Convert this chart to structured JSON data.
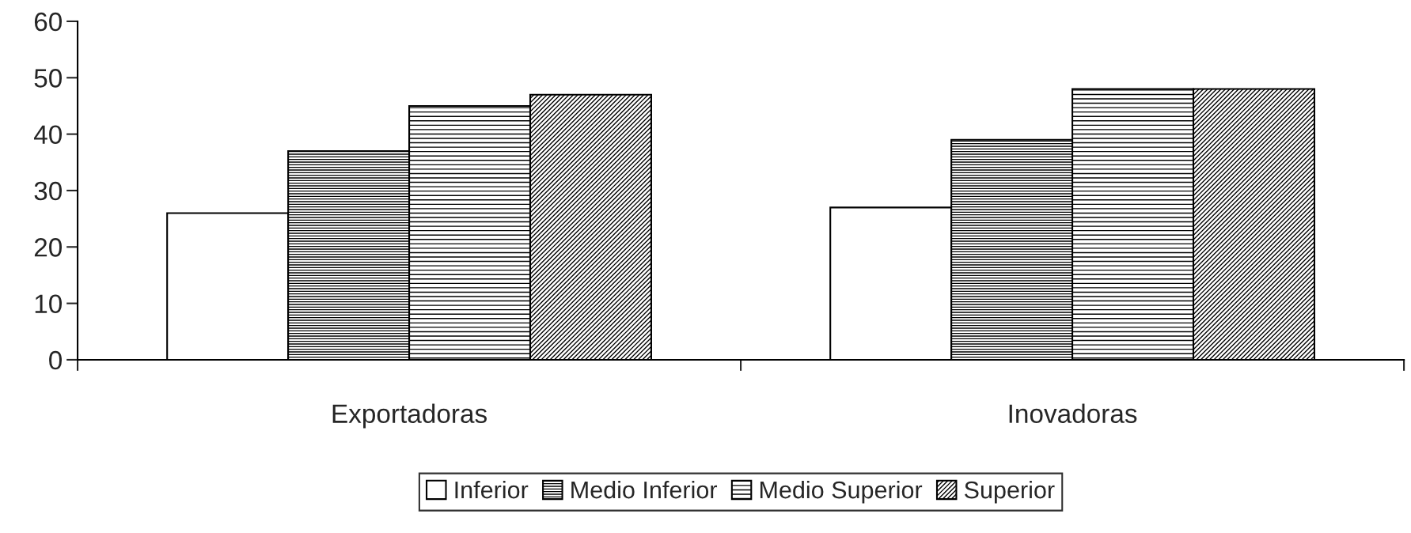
{
  "chart_data": {
    "type": "bar",
    "categories": [
      "Exportadoras",
      "Inovadoras"
    ],
    "series": [
      {
        "name": "Inferior",
        "color": "#ffffff",
        "values": [
          26,
          27
        ]
      },
      {
        "name": "Medio Inferior",
        "color": "#000000",
        "values": [
          37,
          39
        ]
      },
      {
        "name": "Medio Superior",
        "color": "#000000",
        "values": [
          45,
          48
        ]
      },
      {
        "name": "Superior",
        "color": "#000000",
        "values": [
          47,
          48
        ]
      }
    ],
    "ylim": [
      0,
      60
    ],
    "yticks": [
      0,
      10,
      20,
      30,
      40,
      50,
      60
    ],
    "grid": false,
    "legend": "bottom"
  }
}
